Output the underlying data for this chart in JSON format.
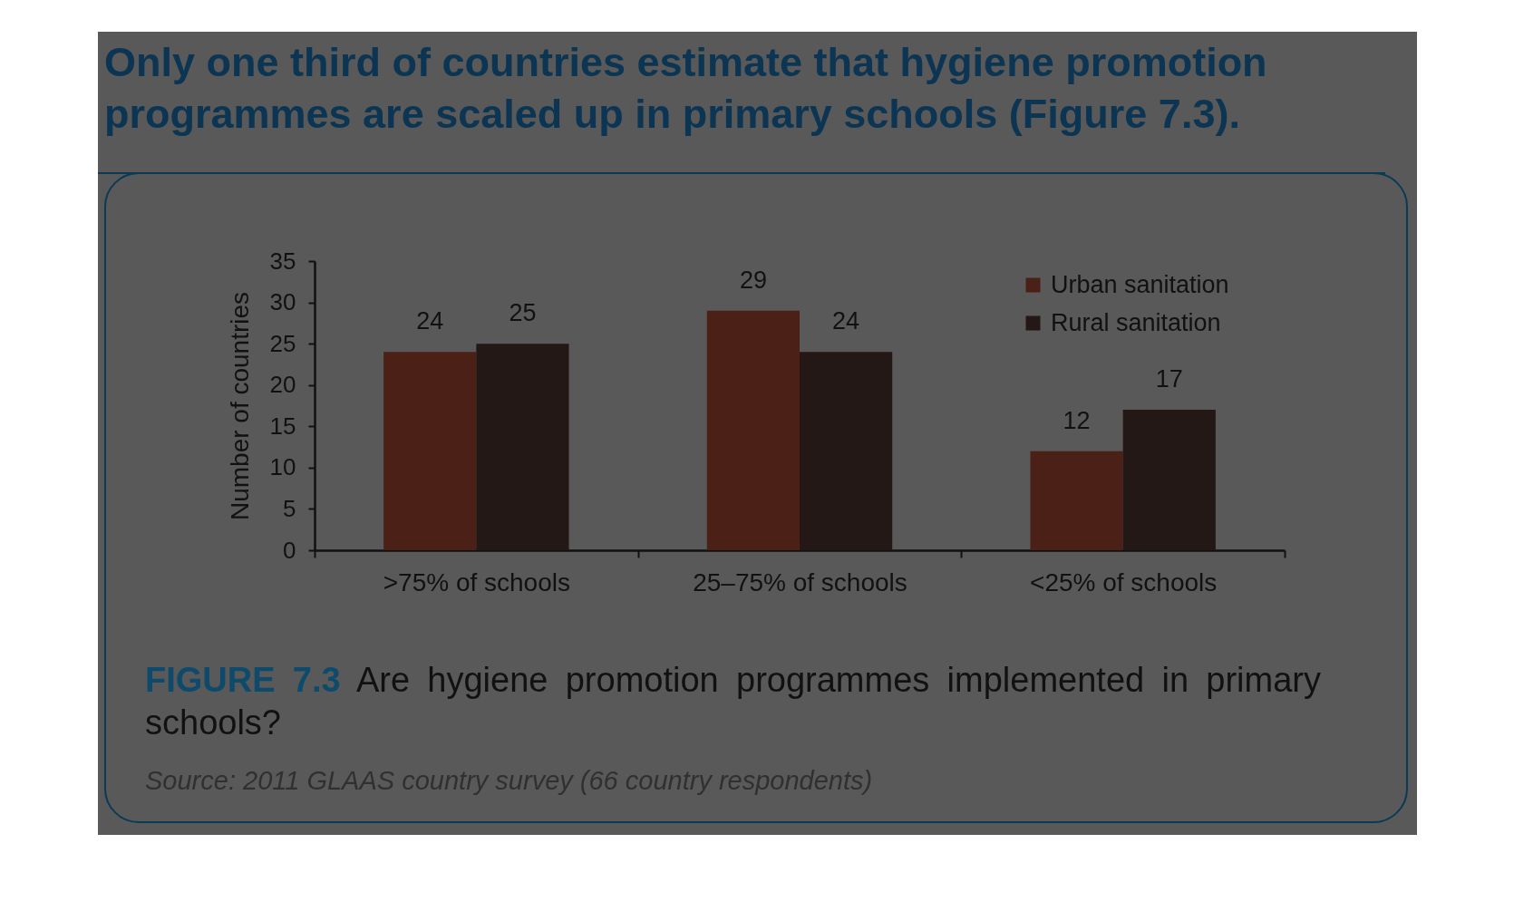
{
  "chart_data": {
    "type": "bar",
    "title": "Only one third of countries estimate that hygiene promotion programmes are scaled up in primary schools (Figure 7.3).",
    "ylabel": "Number of countries",
    "categories": [
      ">75% of schools",
      "25–75% of schools",
      "<25% of schools"
    ],
    "series": [
      {
        "name": "Urban sanitation",
        "color": "#4b2117",
        "values": [
          24,
          29,
          12
        ]
      },
      {
        "name": "Rural sanitation",
        "color": "#231816",
        "values": [
          25,
          24,
          17
        ]
      }
    ],
    "ylim": [
      0,
      35
    ],
    "yticks": [
      0,
      5,
      10,
      15,
      20,
      25,
      30,
      35
    ],
    "grid": false,
    "legend": "top right",
    "data_labels": true,
    "annotations": [
      "FIGURE 7.3",
      "Are hygiene promotion programmes implemented in primary schools?",
      "Source: 2011 GLAAS country survey (66 country respondents)"
    ]
  }
}
